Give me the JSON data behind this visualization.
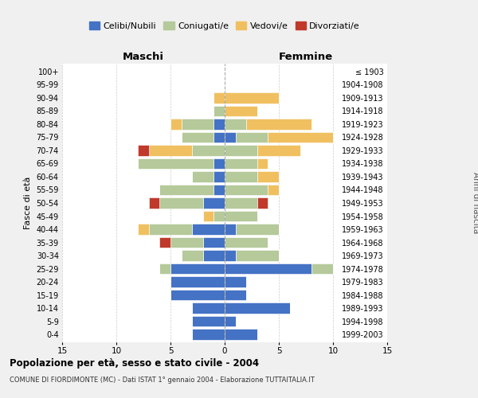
{
  "age_groups": [
    "0-4",
    "5-9",
    "10-14",
    "15-19",
    "20-24",
    "25-29",
    "30-34",
    "35-39",
    "40-44",
    "45-49",
    "50-54",
    "55-59",
    "60-64",
    "65-69",
    "70-74",
    "75-79",
    "80-84",
    "85-89",
    "90-94",
    "95-99",
    "100+"
  ],
  "birth_years": [
    "1999-2003",
    "1994-1998",
    "1989-1993",
    "1984-1988",
    "1979-1983",
    "1974-1978",
    "1969-1973",
    "1964-1968",
    "1959-1963",
    "1954-1958",
    "1949-1953",
    "1944-1948",
    "1939-1943",
    "1934-1938",
    "1929-1933",
    "1924-1928",
    "1919-1923",
    "1914-1918",
    "1909-1913",
    "1904-1908",
    "≤ 1903"
  ],
  "colors": {
    "celibi": "#4472c4",
    "coniugati": "#b5c99a",
    "vedovi": "#f0c060",
    "divorziati": "#c0392b"
  },
  "males": {
    "celibi": [
      3,
      3,
      3,
      5,
      5,
      5,
      2,
      2,
      3,
      0,
      2,
      1,
      1,
      1,
      0,
      1,
      1,
      0,
      0,
      0,
      0
    ],
    "coniugati": [
      0,
      0,
      0,
      0,
      0,
      1,
      2,
      3,
      4,
      1,
      4,
      5,
      2,
      7,
      3,
      3,
      3,
      1,
      0,
      0,
      0
    ],
    "vedovi": [
      0,
      0,
      0,
      0,
      0,
      0,
      0,
      0,
      1,
      1,
      0,
      0,
      0,
      0,
      4,
      0,
      1,
      0,
      1,
      0,
      0
    ],
    "divorziati": [
      0,
      0,
      0,
      0,
      0,
      0,
      0,
      1,
      0,
      0,
      1,
      0,
      0,
      0,
      1,
      0,
      0,
      0,
      0,
      0,
      0
    ]
  },
  "females": {
    "nubili": [
      3,
      1,
      6,
      2,
      2,
      8,
      1,
      0,
      1,
      0,
      0,
      0,
      0,
      0,
      0,
      1,
      0,
      0,
      0,
      0,
      0
    ],
    "coniugate": [
      0,
      0,
      0,
      0,
      0,
      2,
      4,
      4,
      4,
      3,
      3,
      4,
      3,
      3,
      3,
      3,
      2,
      0,
      0,
      0,
      0
    ],
    "vedove": [
      0,
      0,
      0,
      0,
      0,
      0,
      0,
      0,
      0,
      0,
      0,
      1,
      2,
      1,
      4,
      6,
      6,
      3,
      5,
      0,
      0
    ],
    "divorziate": [
      0,
      0,
      0,
      0,
      0,
      0,
      0,
      0,
      0,
      0,
      1,
      0,
      0,
      0,
      0,
      0,
      0,
      0,
      0,
      0,
      0
    ]
  },
  "xlim": 15,
  "title": "Popolazione per età, sesso e stato civile - 2004",
  "subtitle": "COMUNE DI FIORDIMONTE (MC) - Dati ISTAT 1° gennaio 2004 - Elaborazione TUTTAITALIA.IT",
  "xlabel_left": "Maschi",
  "xlabel_right": "Femmine",
  "ylabel_left": "Fasce di età",
  "ylabel_right": "Anni di nascita",
  "legend_labels": [
    "Celibi/Nubili",
    "Coniugati/e",
    "Vedovi/e",
    "Divorziati/e"
  ],
  "bg_color": "#f0f0f0",
  "plot_bg_color": "#ffffff"
}
